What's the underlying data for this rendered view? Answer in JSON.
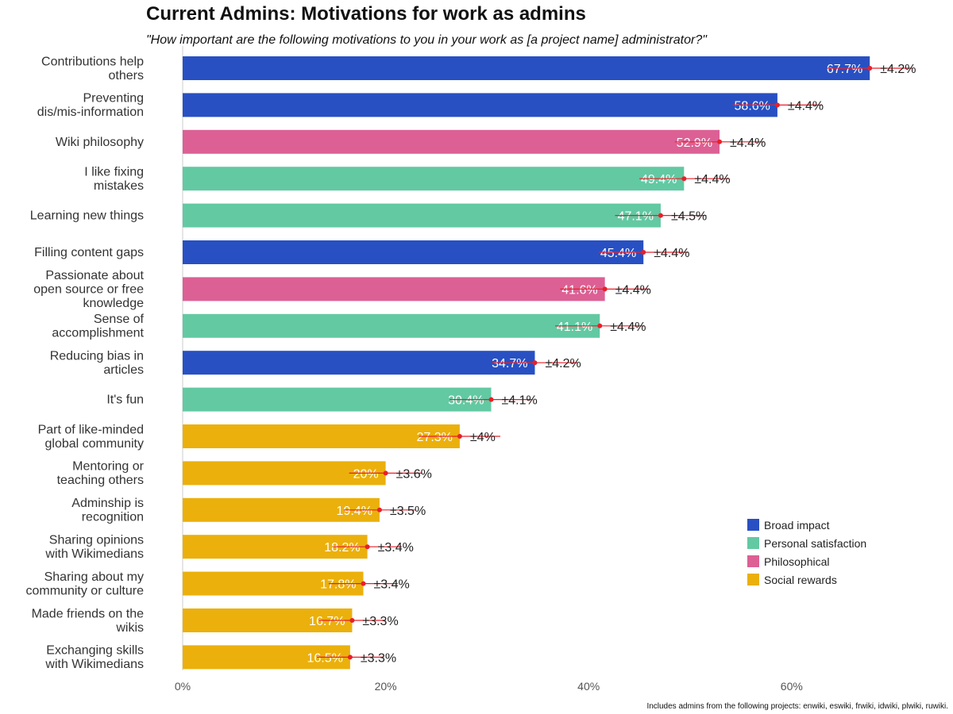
{
  "title": "Current Admins: Motivations for work as admins",
  "subtitle": "\"How important are the following motivations to you in your work as [a project name] administrator?\"",
  "footnote": "Includes admins from the following projects: enwiki, eswiki, frwiki, idwiki, plwiki, ruwiki.",
  "colors": {
    "Broad impact": "#2850c3",
    "Personal satisfaction": "#62c9a3",
    "Philosophical": "#dc6094",
    "Social rewards": "#ebb00b",
    "error": "#e8202a"
  },
  "chart_data": {
    "type": "bar",
    "orientation": "horizontal",
    "title": "Current Admins: Motivations for work as admins",
    "xlabel": "",
    "ylabel": "",
    "xlim": [
      0,
      75
    ],
    "xticks": [
      0,
      20,
      40,
      60
    ],
    "xtick_labels": [
      "0%",
      "20%",
      "40%",
      "60%"
    ],
    "legend": {
      "position": "lower-right",
      "entries": [
        "Broad impact",
        "Personal satisfaction",
        "Philosophical",
        "Social rewards"
      ]
    },
    "bars": [
      {
        "label": [
          "Contributions help",
          "others"
        ],
        "value": 67.7,
        "value_label": "67.7%",
        "error": 4.2,
        "error_label": "±4.2%",
        "category": "Broad impact"
      },
      {
        "label": [
          "Preventing",
          "dis/mis-information"
        ],
        "value": 58.6,
        "value_label": "58.6%",
        "error": 4.4,
        "error_label": "±4.4%",
        "category": "Broad impact"
      },
      {
        "label": [
          "Wiki philosophy"
        ],
        "value": 52.9,
        "value_label": "52.9%",
        "error": 4.4,
        "error_label": "±4.4%",
        "category": "Philosophical"
      },
      {
        "label": [
          "I like fixing",
          "mistakes"
        ],
        "value": 49.4,
        "value_label": "49.4%",
        "error": 4.4,
        "error_label": "±4.4%",
        "category": "Personal satisfaction"
      },
      {
        "label": [
          "Learning new things"
        ],
        "value": 47.1,
        "value_label": "47.1%",
        "error": 4.5,
        "error_label": "±4.5%",
        "category": "Personal satisfaction"
      },
      {
        "label": [
          "Filling content gaps"
        ],
        "value": 45.4,
        "value_label": "45.4%",
        "error": 4.4,
        "error_label": "±4.4%",
        "category": "Broad impact"
      },
      {
        "label": [
          "Passionate about",
          "open source or free",
          "knowledge"
        ],
        "value": 41.6,
        "value_label": "41.6%",
        "error": 4.4,
        "error_label": "±4.4%",
        "category": "Philosophical"
      },
      {
        "label": [
          "Sense of",
          "accomplishment"
        ],
        "value": 41.1,
        "value_label": "41.1%",
        "error": 4.4,
        "error_label": "±4.4%",
        "category": "Personal satisfaction"
      },
      {
        "label": [
          "Reducing bias in",
          "articles"
        ],
        "value": 34.7,
        "value_label": "34.7%",
        "error": 4.2,
        "error_label": "±4.2%",
        "category": "Broad impact"
      },
      {
        "label": [
          "It's fun"
        ],
        "value": 30.4,
        "value_label": "30.4%",
        "error": 4.1,
        "error_label": "±4.1%",
        "category": "Personal satisfaction"
      },
      {
        "label": [
          "Part of like-minded",
          "global community"
        ],
        "value": 27.3,
        "value_label": "27.3%",
        "error": 4.0,
        "error_label": "±4%",
        "category": "Social rewards"
      },
      {
        "label": [
          "Mentoring or",
          "teaching others"
        ],
        "value": 20.0,
        "value_label": "20%",
        "error": 3.6,
        "error_label": "±3.6%",
        "category": "Social rewards"
      },
      {
        "label": [
          "Adminship is",
          "recognition"
        ],
        "value": 19.4,
        "value_label": "19.4%",
        "error": 3.5,
        "error_label": "±3.5%",
        "category": "Social rewards"
      },
      {
        "label": [
          "Sharing opinions",
          "with Wikimedians"
        ],
        "value": 18.2,
        "value_label": "18.2%",
        "error": 3.4,
        "error_label": "±3.4%",
        "category": "Social rewards"
      },
      {
        "label": [
          "Sharing about my",
          "community or culture"
        ],
        "value": 17.8,
        "value_label": "17.8%",
        "error": 3.4,
        "error_label": "±3.4%",
        "category": "Social rewards"
      },
      {
        "label": [
          "Made friends on the",
          "wikis"
        ],
        "value": 16.7,
        "value_label": "16.7%",
        "error": 3.3,
        "error_label": "±3.3%",
        "category": "Social rewards"
      },
      {
        "label": [
          "Exchanging skills",
          "with Wikimedians"
        ],
        "value": 16.5,
        "value_label": "16.5%",
        "error": 3.3,
        "error_label": "±3.3%",
        "category": "Social rewards"
      }
    ]
  }
}
